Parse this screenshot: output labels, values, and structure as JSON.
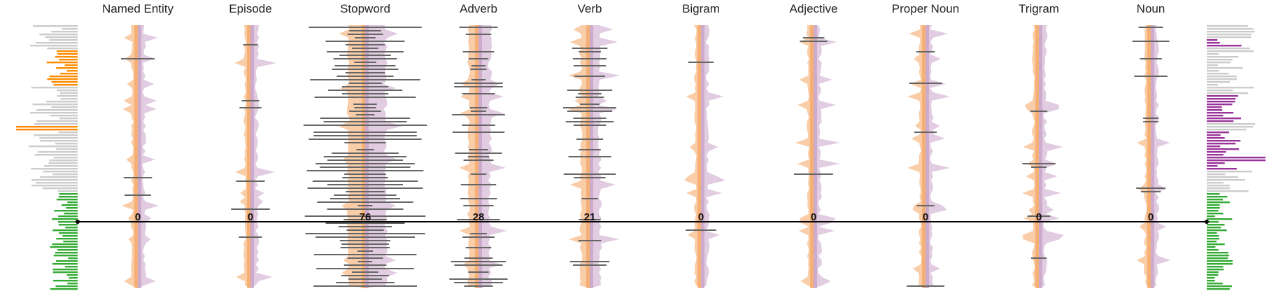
{
  "chart_data": {
    "type": "bar",
    "title": "",
    "xlabel": "",
    "ylabel": "",
    "grid": false,
    "categories": [
      "Named Entity",
      "Episode",
      "Stopword",
      "Adverb",
      "Verb",
      "Bigram",
      "Adjective",
      "Proper Noun",
      "Trigram",
      "Noun"
    ],
    "values": [
      0,
      0,
      76,
      28,
      21,
      0,
      0,
      0,
      0,
      0
    ],
    "colors": {
      "left_band": "#f4a460",
      "right_band": "#c8a2c8",
      "bar": "#666666",
      "side_orange": "#ff8c00",
      "side_green": "#33aa33",
      "side_purple": "#993399",
      "side_gray": "#cccccc"
    }
  }
}
